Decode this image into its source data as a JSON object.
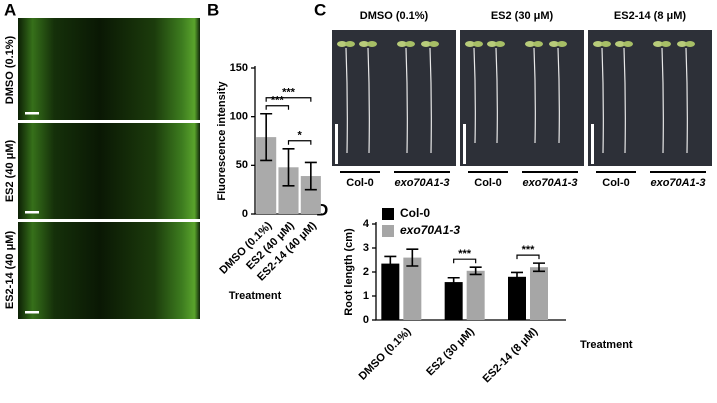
{
  "panels": {
    "a": "A",
    "b": "B",
    "c": "C",
    "d": "D"
  },
  "micrographs": {
    "rows": [
      "DMSO (0.1%)",
      "ES2 (40 μM)",
      "ES2-14 (40 μM)"
    ]
  },
  "seedlings": {
    "treatments": [
      "DMSO (0.1%)",
      "ES2 (30 μM)",
      "ES2-14 (8 μM)"
    ],
    "genotypes": [
      "Col-0",
      "exo70A1-3"
    ]
  },
  "chart_data": [
    {
      "type": "bar",
      "ylabel": "Fluorescence intensity",
      "xlabel": "Treatment",
      "categories": [
        "DMSO (0.1%)",
        "ES2 (40 μM)",
        "ES2-14 (40 μM)"
      ],
      "values": [
        79,
        48,
        39
      ],
      "errors": [
        24,
        19,
        14
      ],
      "color": "#aaaaaa",
      "ylim": [
        0,
        150
      ],
      "yticks": [
        0,
        50,
        100,
        150
      ],
      "annotations": [
        {
          "label": "***",
          "between": [
            0,
            2
          ]
        },
        {
          "label": "***",
          "between": [
            0,
            1
          ]
        },
        {
          "label": "*",
          "between": [
            1,
            2
          ]
        }
      ]
    },
    {
      "type": "grouped_bar",
      "ylabel": "Root length (cm)",
      "xlabel": "Treatment",
      "categories": [
        "DMSO (0.1%)",
        "ES2 (30 μM)",
        "ES2-14 (8 μM)"
      ],
      "series": [
        {
          "name": "Col-0",
          "color": "#000000",
          "values": [
            2.35,
            1.58,
            1.8
          ],
          "errors": [
            0.3,
            0.18,
            0.18
          ]
        },
        {
          "name": "exo70A1-3",
          "color": "#a6a6a6",
          "values": [
            2.6,
            2.05,
            2.2
          ],
          "errors": [
            0.35,
            0.15,
            0.17
          ]
        }
      ],
      "ylim": [
        0,
        4
      ],
      "yticks": [
        0,
        1,
        2,
        3,
        4
      ],
      "legend": "upper left",
      "annotations": [
        {
          "label": "***",
          "category": 1
        },
        {
          "label": "***",
          "category": 2
        }
      ]
    }
  ]
}
